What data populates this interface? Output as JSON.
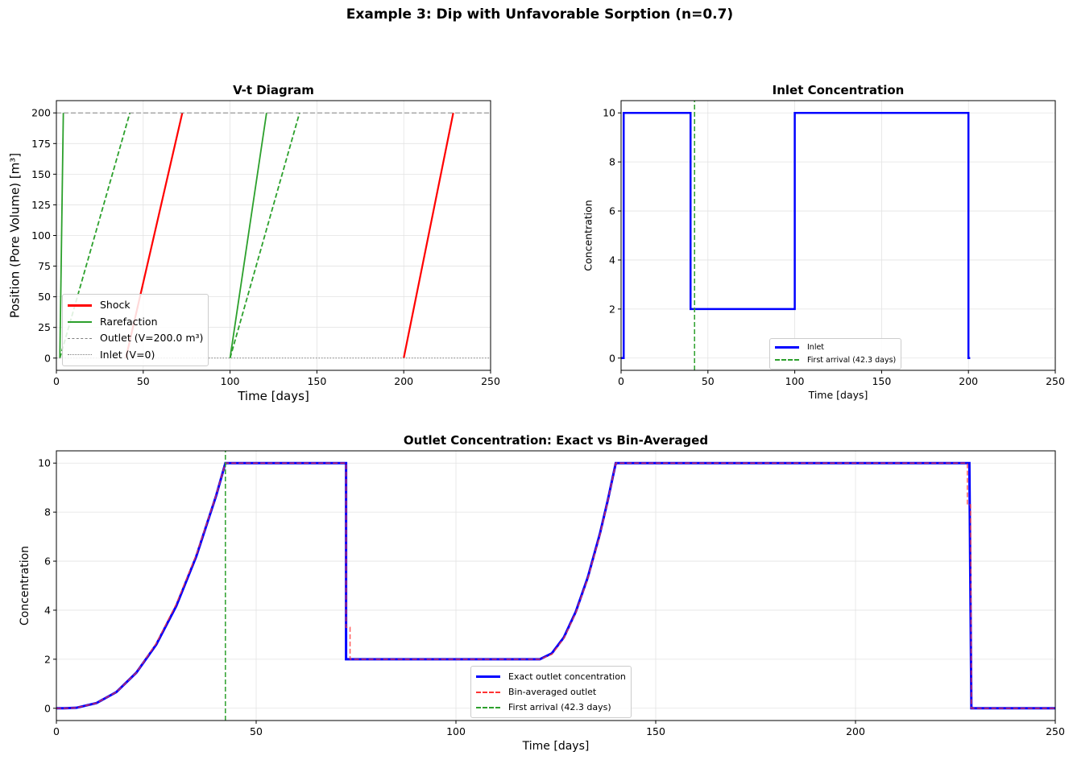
{
  "suptitle": "Example 3: Dip with Unfavorable Sorption (n=0.7)",
  "chart_data": [
    {
      "type": "line",
      "title": "V-t Diagram",
      "xlabel": "Time [days]",
      "ylabel": "Position (Pore Volume) [m³]",
      "xlim": [
        0,
        250
      ],
      "ylim": [
        -10,
        210
      ],
      "xticks": [
        0,
        50,
        100,
        150,
        200,
        250
      ],
      "yticks": [
        0,
        25,
        50,
        75,
        100,
        125,
        150,
        175,
        200
      ],
      "grid": true,
      "legend_position": "lower-left",
      "series": [
        {
          "name": "Shock",
          "color": "#ff0000",
          "style": "solid",
          "points": [
            [
              40,
              0
            ],
            [
              72.5,
              200
            ]
          ]
        },
        {
          "name": "",
          "color": "#ff0000",
          "style": "solid",
          "points": [
            [
              200,
              0
            ],
            [
              228.5,
              200
            ]
          ]
        },
        {
          "name": "Rarefaction",
          "color": "#2ca02c",
          "style": "solid",
          "points": [
            [
              2,
              0
            ],
            [
              4,
              200
            ]
          ]
        },
        {
          "name": "",
          "color": "#2ca02c",
          "style": "dashed",
          "points": [
            [
              2,
              0
            ],
            [
              42.3,
              200
            ]
          ]
        },
        {
          "name": "",
          "color": "#2ca02c",
          "style": "solid",
          "points": [
            [
              100,
              0
            ],
            [
              121,
              200
            ]
          ]
        },
        {
          "name": "",
          "color": "#2ca02c",
          "style": "dashed",
          "points": [
            [
              100,
              0
            ],
            [
              140,
              200
            ]
          ]
        },
        {
          "name": "Outlet (V=200.0 m³)",
          "color": "#808080",
          "style": "dashed",
          "points": [
            [
              0,
              200
            ],
            [
              250,
              200
            ]
          ]
        },
        {
          "name": "Inlet (V=0)",
          "color": "#808080",
          "style": "dotted",
          "points": [
            [
              0,
              0
            ],
            [
              250,
              0
            ]
          ]
        }
      ]
    },
    {
      "type": "line",
      "title": "Inlet Concentration",
      "xlabel": "Time [days]",
      "ylabel": "Concentration",
      "xlim": [
        0,
        250
      ],
      "ylim": [
        -0.5,
        10.5
      ],
      "xticks": [
        0,
        50,
        100,
        150,
        200,
        250
      ],
      "yticks": [
        0,
        2,
        4,
        6,
        8,
        10
      ],
      "grid": true,
      "legend_position": "lower-center",
      "series": [
        {
          "name": "Inlet",
          "color": "#0000ff",
          "style": "solid",
          "points": [
            [
              0,
              0
            ],
            [
              1.5,
              0
            ],
            [
              1.5,
              10
            ],
            [
              40,
              10
            ],
            [
              40,
              2
            ],
            [
              100,
              2
            ],
            [
              100,
              10
            ],
            [
              200,
              10
            ],
            [
              200,
              0
            ],
            [
              201,
              0
            ]
          ]
        },
        {
          "name": "First arrival (42.3 days)",
          "color": "#2ca02c",
          "style": "dashed",
          "vline": 42.3
        }
      ]
    },
    {
      "type": "line",
      "title": "Outlet Concentration: Exact vs Bin-Averaged",
      "xlabel": "Time [days]",
      "ylabel": "Concentration",
      "xlim": [
        0,
        250
      ],
      "ylim": [
        -0.5,
        10.5
      ],
      "xticks": [
        0,
        50,
        100,
        150,
        200,
        250
      ],
      "yticks": [
        0,
        2,
        4,
        6,
        8,
        10
      ],
      "grid": true,
      "legend_position": "lower-center",
      "series": [
        {
          "name": "Exact outlet concentration",
          "color": "#0000ff",
          "style": "solid",
          "points": [
            [
              0,
              0
            ],
            [
              2,
              0
            ],
            [
              5,
              0.02
            ],
            [
              10,
              0.21
            ],
            [
              15,
              0.66
            ],
            [
              20,
              1.45
            ],
            [
              25,
              2.6
            ],
            [
              30,
              4.17
            ],
            [
              35,
              6.19
            ],
            [
              40,
              8.68
            ],
            [
              42.3,
              10
            ],
            [
              72.5,
              10
            ],
            [
              72.5,
              2
            ],
            [
              121,
              2
            ],
            [
              124,
              2.24
            ],
            [
              127,
              2.89
            ],
            [
              130,
              3.94
            ],
            [
              133,
              5.34
            ],
            [
              136,
              7.1
            ],
            [
              138,
              8.48
            ],
            [
              140,
              10
            ],
            [
              228.5,
              10
            ],
            [
              229,
              0
            ],
            [
              250,
              0
            ]
          ]
        },
        {
          "name": "Bin-averaged outlet",
          "color": "#ff3333",
          "style": "dashed",
          "points": [
            [
              0,
              0
            ],
            [
              2,
              0
            ],
            [
              5,
              0.02
            ],
            [
              10,
              0.21
            ],
            [
              15,
              0.66
            ],
            [
              20,
              1.45
            ],
            [
              25,
              2.65
            ],
            [
              30,
              4.25
            ],
            [
              35,
              6.25
            ],
            [
              40,
              8.7
            ],
            [
              42.3,
              10
            ],
            [
              72.5,
              10
            ],
            [
              72.5,
              3.3
            ],
            [
              73.5,
              3.3
            ],
            [
              73.5,
              2
            ],
            [
              121,
              2
            ],
            [
              124,
              2.2
            ],
            [
              127,
              2.85
            ],
            [
              130,
              3.9
            ],
            [
              133,
              5.3
            ],
            [
              136,
              7.05
            ],
            [
              138,
              8.45
            ],
            [
              140,
              10
            ],
            [
              228,
              10
            ],
            [
              228,
              8.3
            ],
            [
              228.8,
              8.3
            ],
            [
              229,
              0
            ],
            [
              250,
              0
            ]
          ]
        },
        {
          "name": "First arrival (42.3 days)",
          "color": "#2ca02c",
          "style": "dashed",
          "vline": 42.3
        }
      ]
    }
  ]
}
